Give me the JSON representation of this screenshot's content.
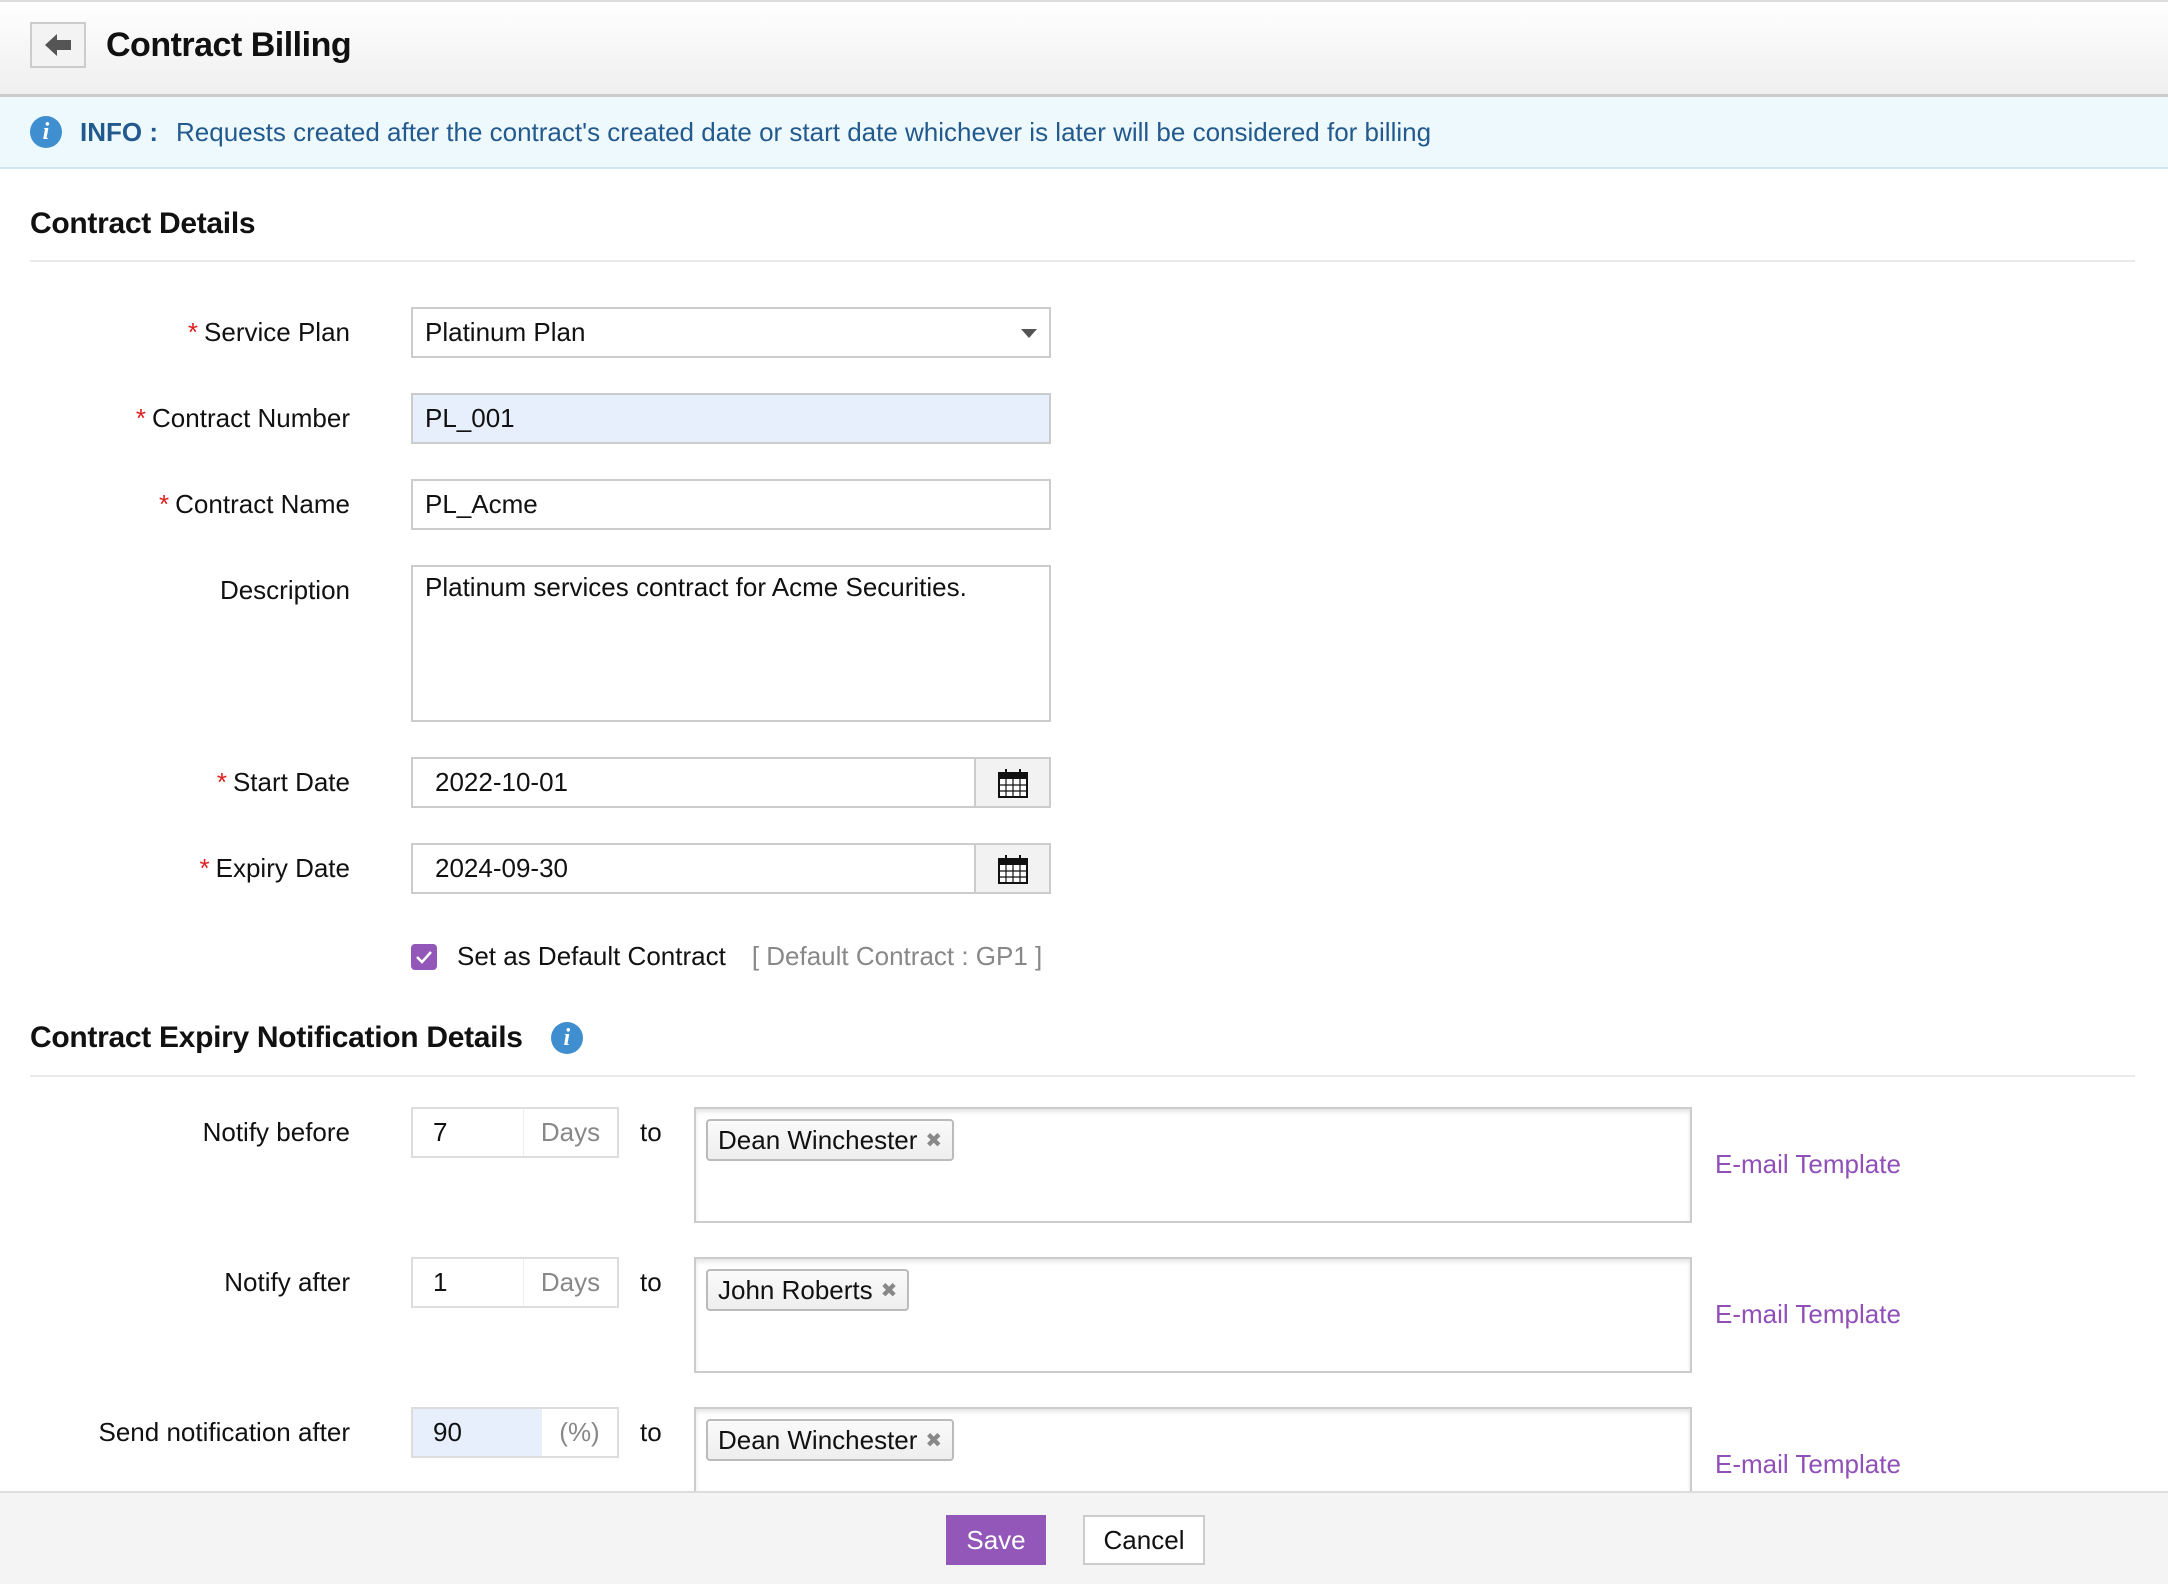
{
  "header": {
    "title": "Contract Billing",
    "back_icon": "arrow-left-icon"
  },
  "info": {
    "prefix": "INFO :",
    "message": "Requests created after the contract's created date or start date whichever is later will be considered for billing"
  },
  "contract_details": {
    "heading": "Contract Details",
    "service_plan": {
      "label": "Service Plan",
      "value": "Platinum Plan"
    },
    "contract_number": {
      "label": "Contract Number",
      "value": "PL_001"
    },
    "contract_name": {
      "label": "Contract Name",
      "value": "PL_Acme"
    },
    "description": {
      "label": "Description",
      "value": "Platinum services contract for Acme Securities."
    },
    "start_date": {
      "label": "Start Date",
      "value": "2022-10-01"
    },
    "expiry_date": {
      "label": "Expiry Date",
      "value": "2024-09-30"
    },
    "default_contract": {
      "label": "Set as Default Contract",
      "checked": true,
      "note": "[ Default Contract : GP1 ]"
    }
  },
  "notification": {
    "heading": "Contract Expiry Notification Details",
    "rows": [
      {
        "label": "Notify before",
        "value": "7",
        "unit": "Days",
        "to": "to",
        "recipients": [
          "Dean Winchester"
        ],
        "link": "E-mail Template"
      },
      {
        "label": "Notify after",
        "value": "1",
        "unit": "Days",
        "to": "to",
        "recipients": [
          "John Roberts"
        ],
        "link": "E-mail Template"
      },
      {
        "label": "Send notification after",
        "value": "90",
        "unit": "(%)",
        "to": "to",
        "recipients": [
          "Dean Winchester"
        ],
        "link": "E-mail Template"
      }
    ]
  },
  "footer": {
    "save": "Save",
    "cancel": "Cancel"
  },
  "colors": {
    "accent": "#9257b8",
    "info_text": "#235a8e",
    "required": "#e02020"
  }
}
